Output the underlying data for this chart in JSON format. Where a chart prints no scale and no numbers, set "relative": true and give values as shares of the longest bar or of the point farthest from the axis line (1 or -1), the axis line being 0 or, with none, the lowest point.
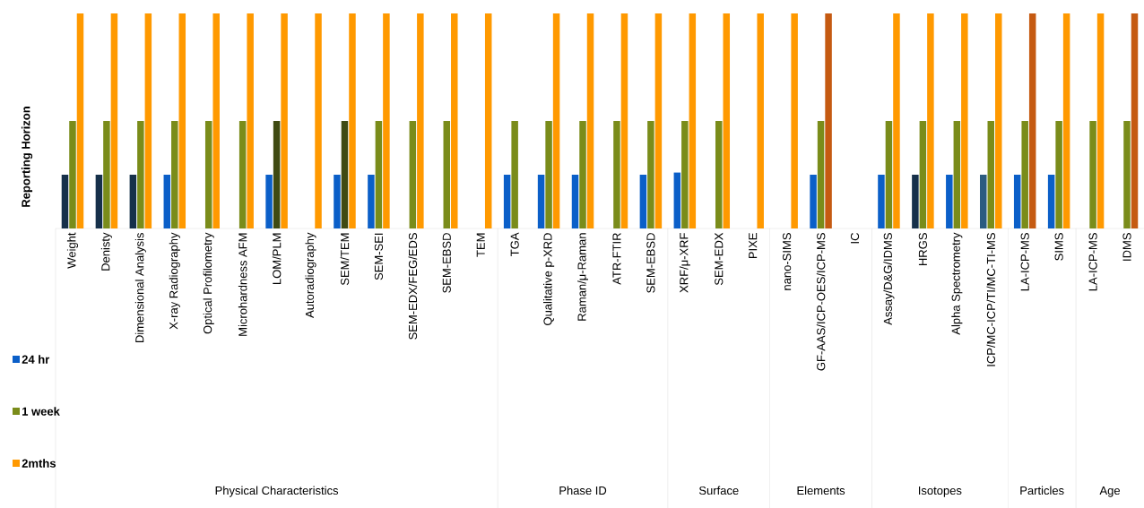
{
  "chart_data": {
    "type": "bar",
    "relative": true,
    "ylabel": "Reporting Horizon",
    "legend": "bottom left",
    "categories": [
      "Weight",
      "Denisty",
      "Dimensional Analysis",
      "X-ray Radiography",
      "Optical Profilometry",
      "Microhardness AFM",
      "LOM/PLM",
      "Autoradiography",
      "SEM/TEM",
      "SEM-SEI",
      "SEM-EDX/FEG/EDS",
      "SEM-EBSD",
      "TEM",
      "TGA",
      "Qualitative p-XRD",
      "Raman/μ-Raman",
      "ATR-FTIR",
      "SEM-EBSD",
      "XRF/μ-XRF",
      "SEM-EDX",
      "PIXE",
      "nano-SIMS",
      "GF-AAS/ICP-OES/ICP-MS",
      "IC",
      "Assay/D&G/IDMS",
      "HRGS",
      "Alpha Spectrometry",
      "ICP/MC-ICP/TI/MC-TI-MS",
      "LA-ICP-MS",
      "SIMS",
      "LA-ICP-MS",
      "IDMS"
    ],
    "series": [
      {
        "name": "24 hr",
        "color": "#0b5fc8",
        "values": [
          0.25,
          0.25,
          0.25,
          0.25,
          null,
          null,
          0.25,
          null,
          0.25,
          0.25,
          null,
          null,
          null,
          0.25,
          0.25,
          0.25,
          null,
          0.25,
          0.26,
          null,
          null,
          null,
          0.25,
          null,
          0.25,
          0.25,
          0.25,
          0.25,
          0.25,
          0.25,
          null,
          null
        ],
        "colors": [
          "#16304a",
          "#16304a",
          "#16304a",
          "#0b5fc8",
          "#0b5fc8",
          "#0b5fc8",
          "#0b5fc8",
          "#0b5fc8",
          "#0b5fc8",
          "#0b5fc8",
          "#0b5fc8",
          "#0b5fc8",
          "#0b5fc8",
          "#0b5fc8",
          "#0b5fc8",
          "#0b5fc8",
          "#0b5fc8",
          "#0b5fc8",
          "#0b5fc8",
          "#0b5fc8",
          "#0b5fc8",
          "#0b5fc8",
          "#0b5fc8",
          "#0b5fc8",
          "#0b5fc8",
          "#16304a",
          "#0b5fc8",
          "#2b5b80",
          "#0b5fc8",
          "#0b5fc8",
          "#0b5fc8",
          "#0b5fc8"
        ]
      },
      {
        "name": "1 week",
        "color": "#7a8c1a",
        "values": [
          0.5,
          0.5,
          0.5,
          0.5,
          0.5,
          0.5,
          0.5,
          null,
          0.5,
          0.5,
          0.5,
          0.5,
          null,
          0.5,
          0.5,
          0.5,
          0.5,
          0.5,
          0.5,
          0.5,
          null,
          null,
          0.5,
          null,
          0.5,
          0.5,
          0.5,
          0.5,
          0.5,
          0.5,
          0.5,
          0.5
        ],
        "colors": [
          "#7a8c1a",
          "#7a8c1a",
          "#7a8c1a",
          "#7a8c1a",
          "#7a8c1a",
          "#7a8c1a",
          "#3f4a12",
          "#7a8c1a",
          "#3f4a12",
          "#7a8c1a",
          "#7a8c1a",
          "#7a8c1a",
          "#7a8c1a",
          "#7a8c1a",
          "#7a8c1a",
          "#7a8c1a",
          "#7a8c1a",
          "#7a8c1a",
          "#7a8c1a",
          "#7a8c1a",
          "#7a8c1a",
          "#7a8c1a",
          "#7a8c1a",
          "#7a8c1a",
          "#7a8c1a",
          "#7a8c1a",
          "#7a8c1a",
          "#7a8c1a",
          "#7a8c1a",
          "#7a8c1a",
          "#7a8c1a",
          "#7a8c1a"
        ]
      },
      {
        "name": "2mths",
        "color": "#ff9900",
        "values": [
          1,
          1,
          1,
          1,
          1,
          1,
          1,
          1,
          1,
          1,
          1,
          1,
          1,
          null,
          1,
          1,
          1,
          1,
          1,
          1,
          1,
          1,
          1,
          null,
          1,
          1,
          1,
          1,
          1,
          1,
          1,
          1
        ],
        "colors": [
          "#ff9900",
          "#ff9900",
          "#ff9900",
          "#ff9900",
          "#ff9900",
          "#ff9900",
          "#ff9900",
          "#ff9900",
          "#ff9900",
          "#ff9900",
          "#ff9900",
          "#ff9900",
          "#ff9900",
          "#ff9900",
          "#ff9900",
          "#ff9900",
          "#ff9900",
          "#ff9900",
          "#ff9900",
          "#ff9900",
          "#ff9900",
          "#ff9900",
          "#c55a11",
          "#ff9900",
          "#ff9900",
          "#ff9900",
          "#ff9900",
          "#ff9900",
          "#c55a11",
          "#ff9900",
          "#ff9900",
          "#c55a11"
        ]
      }
    ],
    "annotations": [
      "Physical Characteristics",
      "Phase ID",
      "Surface",
      "Elements",
      "Isotopes",
      "Particles",
      "Age"
    ]
  }
}
